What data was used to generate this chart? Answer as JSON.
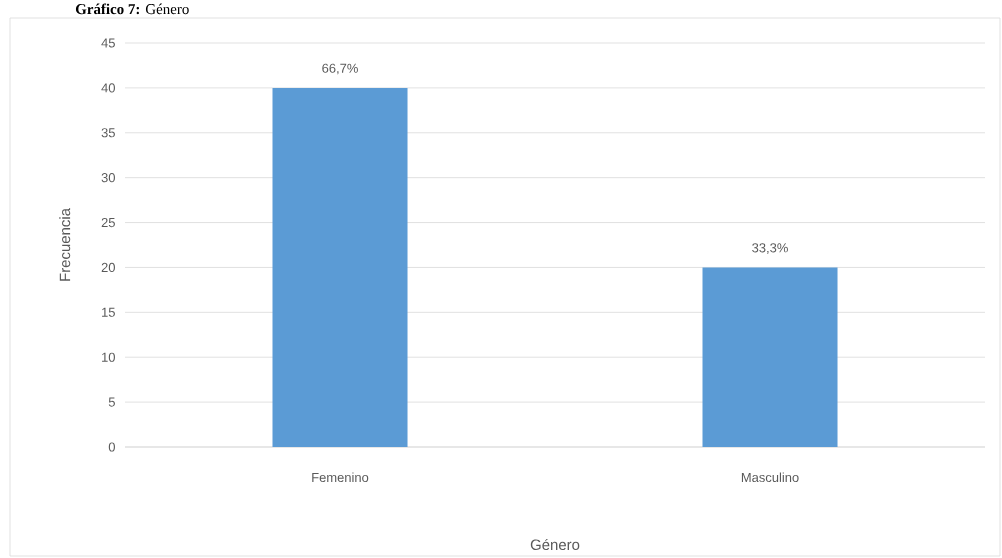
{
  "chart_data": {
    "type": "bar",
    "title": "**Gráfico 7:** Género",
    "xlabel": "Género",
    "ylabel": "Frecuencia",
    "categories": [
      "Femenino",
      "Masculino"
    ],
    "values": [
      40,
      20
    ],
    "color": "#5b9bd5",
    "annotations": [
      {
        "text": "66,7%",
        "x": "Femenino",
        "y": 40
      },
      {
        "text": "33,3%",
        "x": "Masculino",
        "y": 20
      }
    ],
    "ylim": [
      0,
      45
    ],
    "yticks": [
      0,
      5,
      10,
      15,
      20,
      25,
      30,
      35,
      40,
      45
    ],
    "grid": "y"
  }
}
